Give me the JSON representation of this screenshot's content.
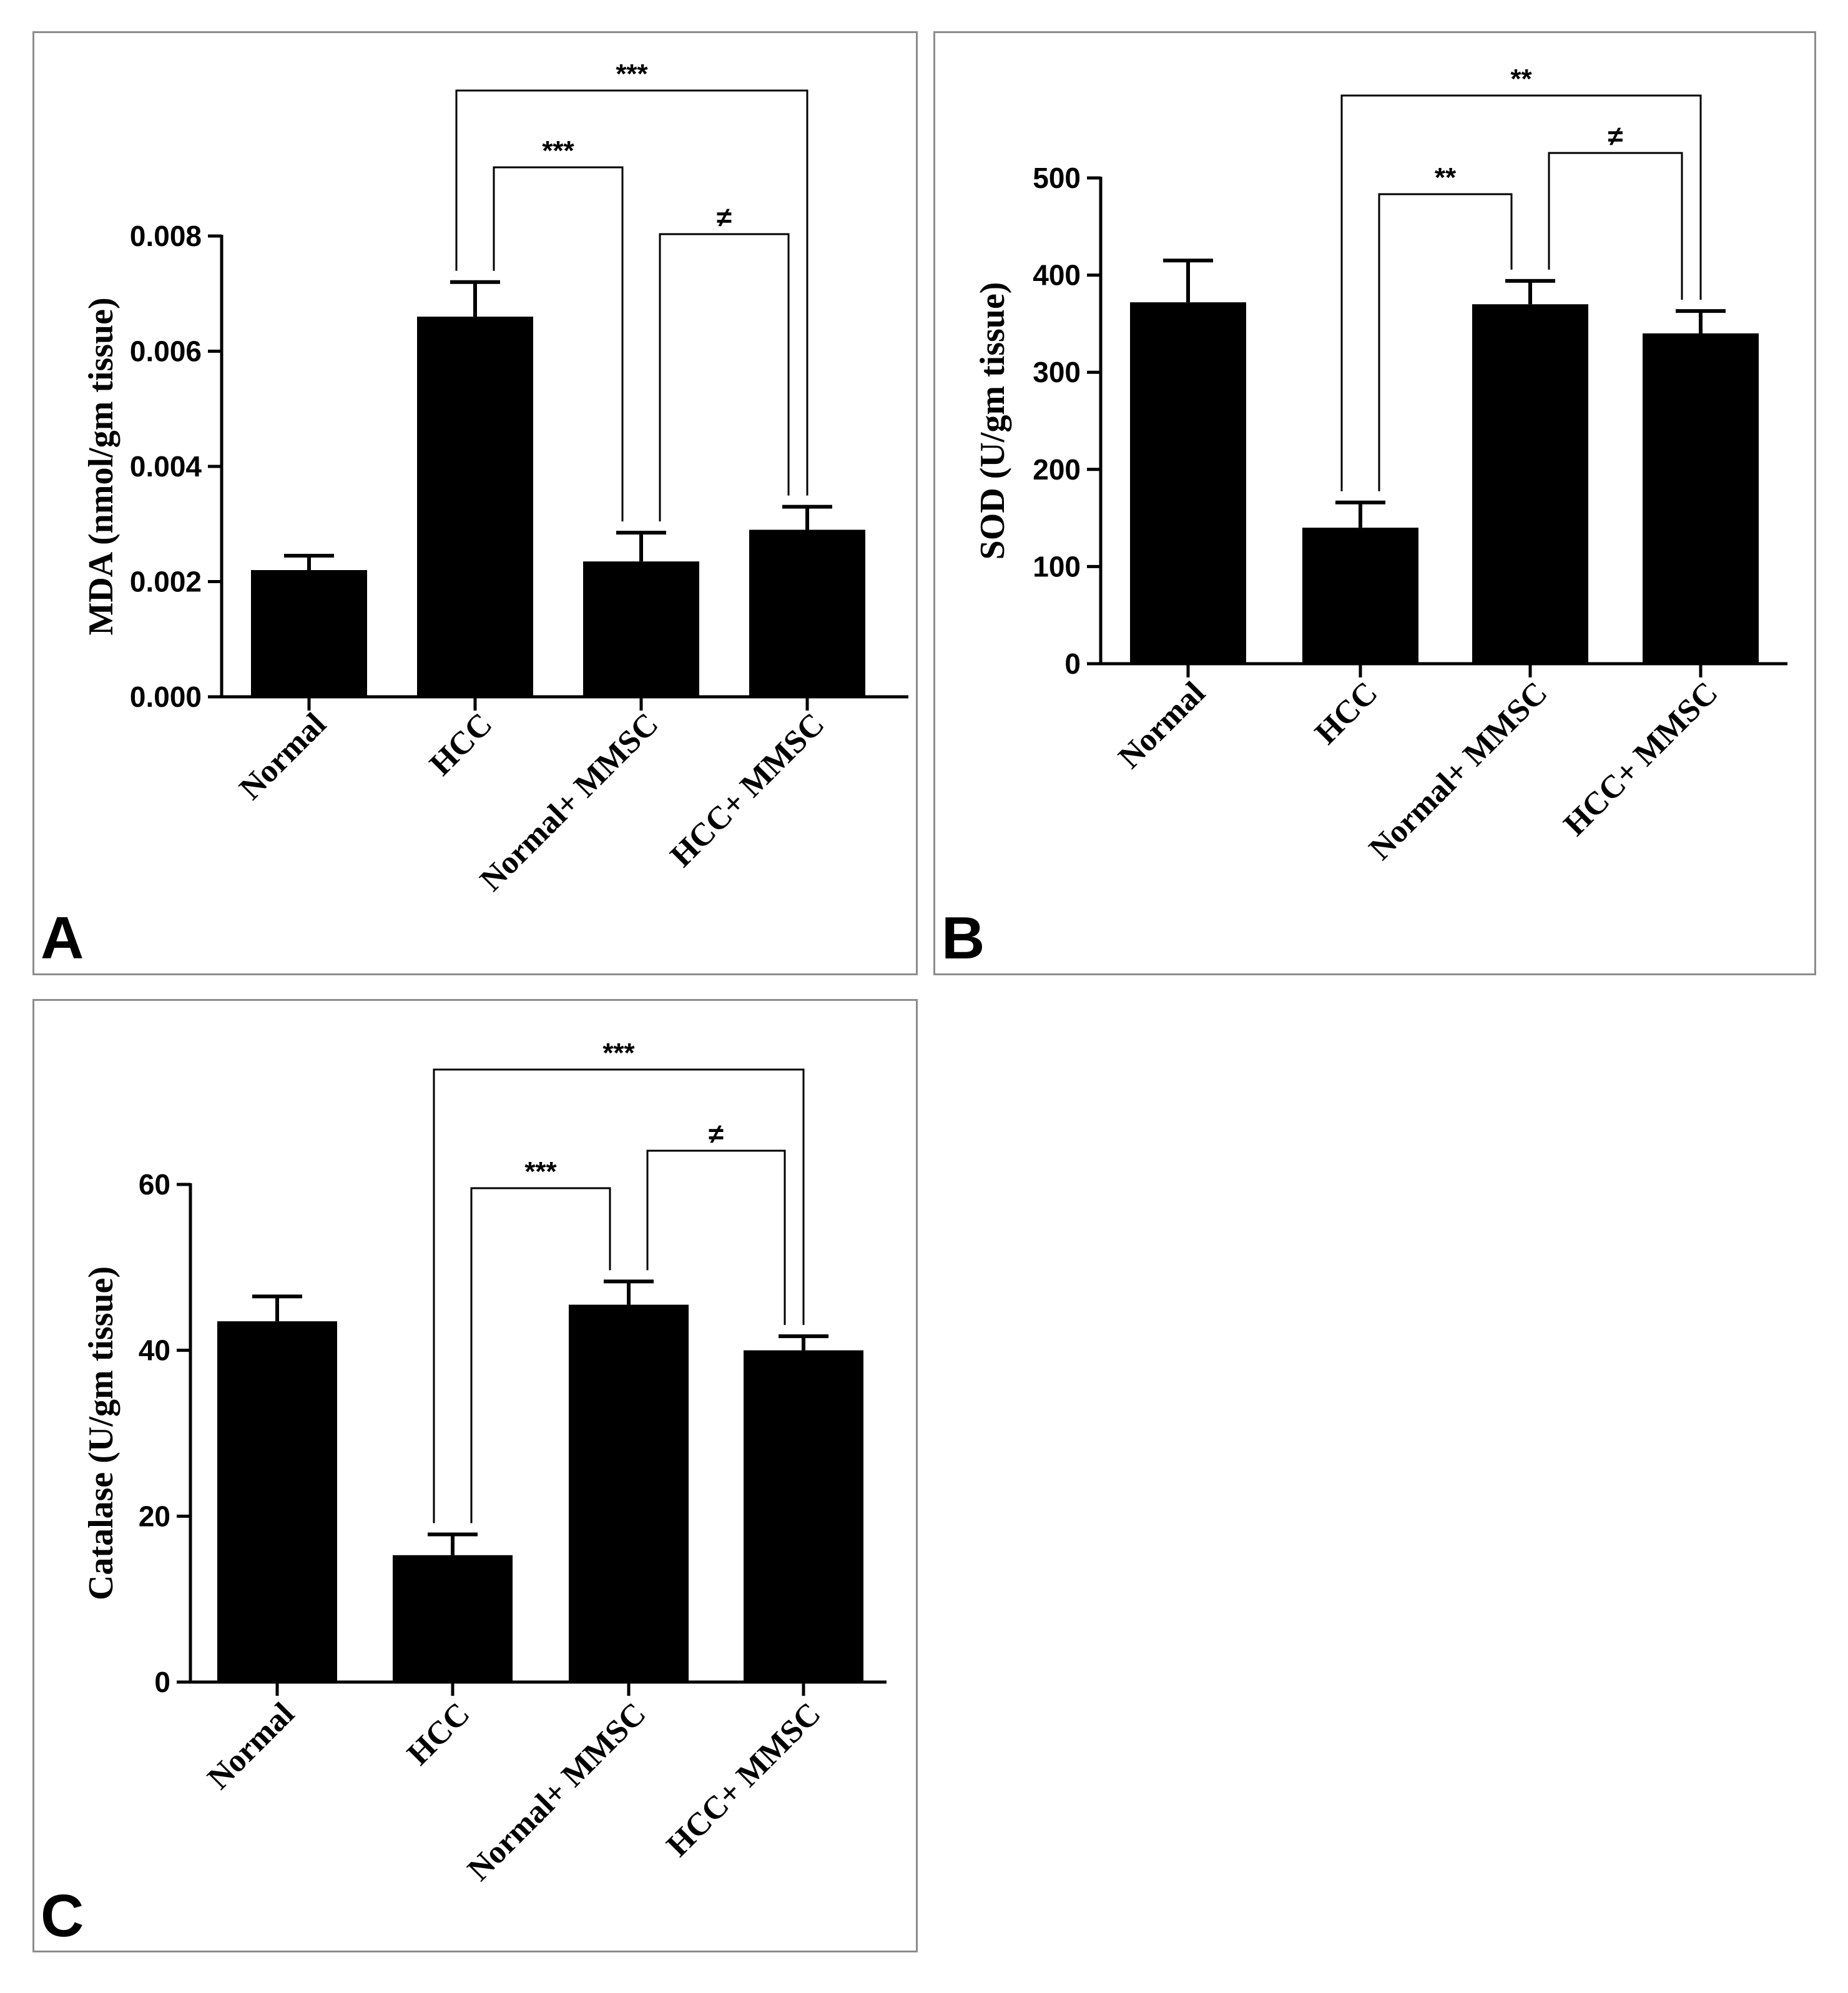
{
  "chart_data": [
    {
      "panel": "A",
      "type": "bar",
      "title": "",
      "xlabel": "",
      "ylabel": "MDA (nmol/gm tissue)",
      "categories": [
        "Normal",
        "HCC",
        "Normal+ MMSC",
        "HCC+ MMSC"
      ],
      "values": [
        0.0022,
        0.0066,
        0.00235,
        0.0029
      ],
      "errors": [
        0.00025,
        0.0006,
        0.0005,
        0.0004
      ],
      "ylim": [
        0,
        0.008
      ],
      "yticks": [
        0.0,
        0.002,
        0.004,
        0.006,
        0.008
      ],
      "ytick_labels": [
        "0.000",
        "0.002",
        "0.004",
        "0.006",
        "0.008"
      ],
      "brackets": [
        {
          "from": 1,
          "to": 3,
          "label": "***"
        },
        {
          "from": 1,
          "to": 2,
          "label": "***"
        },
        {
          "from": 2,
          "to": 3,
          "label": "≠"
        }
      ]
    },
    {
      "panel": "B",
      "type": "bar",
      "title": "",
      "xlabel": "",
      "ylabel": "SOD (U/gm tissue)",
      "categories": [
        "Normal",
        "HCC",
        "Normal+ MMSC",
        "HCC+ MMSC"
      ],
      "values": [
        372,
        140,
        370,
        340
      ],
      "errors": [
        43,
        26,
        24,
        23
      ],
      "ylim": [
        0,
        500
      ],
      "yticks": [
        0,
        100,
        200,
        300,
        400,
        500
      ],
      "ytick_labels": [
        "0",
        "100",
        "200",
        "300",
        "400",
        "500"
      ],
      "brackets": [
        {
          "from": 1,
          "to": 3,
          "label": "**"
        },
        {
          "from": 1,
          "to": 2,
          "label": "**"
        },
        {
          "from": 2,
          "to": 3,
          "label": "≠"
        }
      ]
    },
    {
      "panel": "C",
      "type": "bar",
      "title": "",
      "xlabel": "",
      "ylabel": "Catalase (U/gm tissue)",
      "categories": [
        "Normal",
        "HCC",
        "Normal+ MMSC",
        "HCC+ MMSC"
      ],
      "values": [
        43.5,
        15.3,
        45.5,
        40
      ],
      "errors": [
        3,
        2.5,
        2.8,
        1.7
      ],
      "ylim": [
        0,
        60
      ],
      "yticks": [
        0,
        20,
        40,
        60
      ],
      "ytick_labels": [
        "0",
        "20",
        "40",
        "60"
      ],
      "brackets": [
        {
          "from": 1,
          "to": 3,
          "label": "***"
        },
        {
          "from": 1,
          "to": 2,
          "label": "***"
        },
        {
          "from": 2,
          "to": 3,
          "label": "≠"
        }
      ]
    }
  ]
}
